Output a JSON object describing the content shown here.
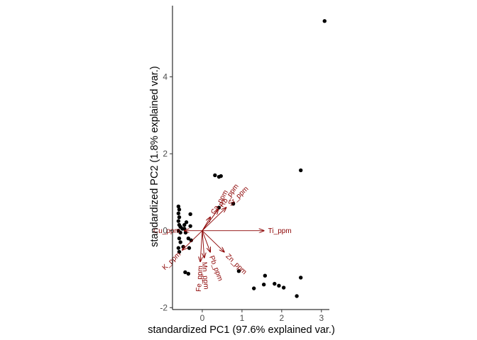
{
  "chart_data": {
    "type": "scatter",
    "title": "",
    "xlabel": "standardized PC1 (97.6% explained var.)",
    "ylabel": "standardized PC2 (1.8% explained var.)",
    "xlim": [
      -0.75,
      3.2
    ],
    "ylim": [
      -2.05,
      5.85
    ],
    "x_ticks": [
      0,
      1,
      2,
      3
    ],
    "y_ticks": [
      -2,
      0,
      2,
      4
    ],
    "grid": false,
    "legend": "none",
    "colors": {
      "points": "#000000",
      "arrows": "#8b0000",
      "axis": "#000000",
      "ticks": "#4d4d4d"
    },
    "points": [
      {
        "x": 3.08,
        "y": 5.45
      },
      {
        "x": 2.48,
        "y": 1.57
      },
      {
        "x": 0.32,
        "y": 1.44
      },
      {
        "x": 0.42,
        "y": 1.4
      },
      {
        "x": 0.47,
        "y": 1.42
      },
      {
        "x": 0.78,
        "y": 0.7
      },
      {
        "x": 0.42,
        "y": 0.6
      },
      {
        "x": -0.3,
        "y": 0.43
      },
      {
        "x": -0.6,
        "y": 0.63
      },
      {
        "x": -0.58,
        "y": 0.55
      },
      {
        "x": -0.6,
        "y": 0.45
      },
      {
        "x": -0.58,
        "y": 0.35
      },
      {
        "x": -0.6,
        "y": 0.25
      },
      {
        "x": -0.58,
        "y": 0.15
      },
      {
        "x": -0.55,
        "y": 0.1
      },
      {
        "x": -0.5,
        "y": 0.05
      },
      {
        "x": -0.6,
        "y": 0.0
      },
      {
        "x": -0.55,
        "y": -0.05
      },
      {
        "x": -0.45,
        "y": 0.15
      },
      {
        "x": -0.45,
        "y": 0.05
      },
      {
        "x": -0.42,
        "y": -0.05
      },
      {
        "x": -0.4,
        "y": 0.22
      },
      {
        "x": -0.3,
        "y": 0.12
      },
      {
        "x": -0.35,
        "y": -0.2
      },
      {
        "x": -0.28,
        "y": -0.25
      },
      {
        "x": -0.58,
        "y": -0.2
      },
      {
        "x": -0.55,
        "y": -0.3
      },
      {
        "x": -0.48,
        "y": -0.42
      },
      {
        "x": -0.6,
        "y": -0.45
      },
      {
        "x": -0.58,
        "y": -0.55
      },
      {
        "x": -0.33,
        "y": -0.45
      },
      {
        "x": -0.43,
        "y": -1.08
      },
      {
        "x": -0.35,
        "y": -1.12
      },
      {
        "x": 0.92,
        "y": -1.05
      },
      {
        "x": 1.3,
        "y": -1.5
      },
      {
        "x": 1.55,
        "y": -1.4
      },
      {
        "x": 1.58,
        "y": -1.17
      },
      {
        "x": 1.82,
        "y": -1.38
      },
      {
        "x": 1.93,
        "y": -1.43
      },
      {
        "x": 2.05,
        "y": -1.48
      },
      {
        "x": 2.48,
        "y": -1.22
      },
      {
        "x": 2.38,
        "y": -1.7
      }
    ],
    "loadings": [
      {
        "label": "Ti_ppm",
        "x": 1.55,
        "y": 0.0
      },
      {
        "label": "Sr_ppm",
        "x": 0.6,
        "y": 0.6
      },
      {
        "label": "Rb_ppm",
        "x": 0.4,
        "y": 0.55
      },
      {
        "label": "Ca_ppm",
        "x": 0.2,
        "y": 0.35
      },
      {
        "label": "Zn_ppm",
        "x": 0.55,
        "y": -0.55
      },
      {
        "label": "Mn_ppm",
        "x": 0.05,
        "y": -0.7
      },
      {
        "label": "Fe_ppm",
        "x": -0.05,
        "y": -0.8
      },
      {
        "label": "Pb_ppm",
        "x": 0.2,
        "y": -0.55
      },
      {
        "label": "Cu_ppm",
        "x": -0.45,
        "y": 0.0
      },
      {
        "label": "K_ppm",
        "x": -0.5,
        "y": -0.5
      }
    ]
  }
}
